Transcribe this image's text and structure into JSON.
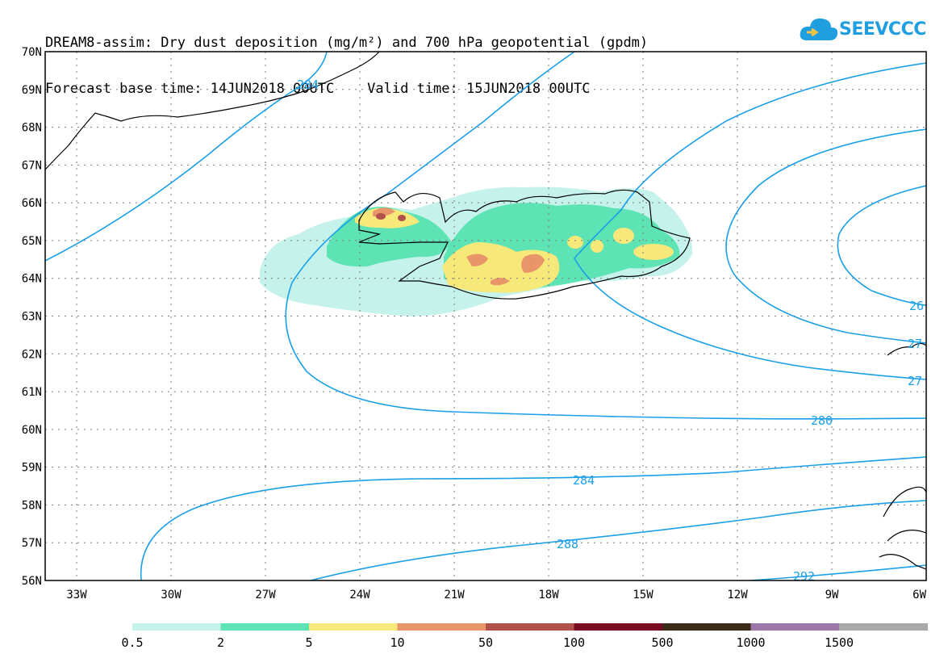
{
  "title": {
    "line1": "DREAM8-assim: Dry dust deposition (mg/m²) and 700 hPa geopotential (gpdm)",
    "line2": "Forecast base time: 14JUN2018 00UTC    Valid time: 15JUN2018 00UTC"
  },
  "logo": {
    "text": "SEEVCCC"
  },
  "map": {
    "lat_labels": [
      "70N",
      "69N",
      "68N",
      "67N",
      "66N",
      "65N",
      "64N",
      "63N",
      "62N",
      "61N",
      "60N",
      "59N",
      "58N",
      "57N",
      "56N"
    ],
    "lon_labels": [
      "33W",
      "30W",
      "27W",
      "24W",
      "21W",
      "18W",
      "15W",
      "12W",
      "9W",
      "6W"
    ],
    "contour_labels": [
      "284",
      "280",
      "284",
      "288",
      "292",
      "26",
      "27",
      "27"
    ],
    "contour_color": "#1a9fe8"
  },
  "legend": {
    "colors": [
      "#c5f2ea",
      "#5ee3b5",
      "#f7e87a",
      "#e8956a",
      "#b0524a",
      "#7a0a22",
      "#3b2a16",
      "#9d77a7",
      "#a8a8a8"
    ],
    "labels": [
      "0.5",
      "2",
      "5",
      "10",
      "50",
      "100",
      "500",
      "1000",
      "1500"
    ]
  }
}
